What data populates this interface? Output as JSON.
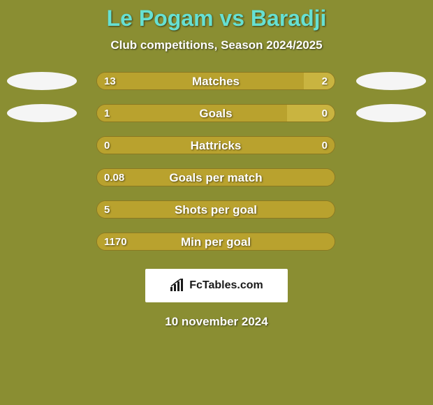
{
  "colors": {
    "background": "#8a8e32",
    "left_bar": "#b9a22e",
    "right_bar": "#c9b440",
    "left_bar_neutral": "#b9a22e",
    "avatar": "#f5f5f5",
    "title": "#66e0d2",
    "subtitle": "#ffffff",
    "row_text": "#ffffff",
    "badge_bg": "#ffffff",
    "badge_text": "#1a1a1a",
    "date_text": "#ffffff"
  },
  "layout": {
    "bar_track_width": 342,
    "bar_track_height": 26,
    "bar_radius": 13
  },
  "header": {
    "title": "Le Pogam vs Baradji",
    "subtitle": "Club competitions, Season 2024/2025"
  },
  "rows": [
    {
      "label": "Matches",
      "left": "13",
      "right": "2",
      "left_pct": 87,
      "right_pct": 13,
      "show_avatars": true
    },
    {
      "label": "Goals",
      "left": "1",
      "right": "0",
      "left_pct": 80,
      "right_pct": 20,
      "show_avatars": true
    },
    {
      "label": "Hattricks",
      "left": "0",
      "right": "0",
      "left_pct": 100,
      "right_pct": 0,
      "show_avatars": false
    },
    {
      "label": "Goals per match",
      "left": "0.08",
      "right": "",
      "left_pct": 100,
      "right_pct": 0,
      "show_avatars": false
    },
    {
      "label": "Shots per goal",
      "left": "5",
      "right": "",
      "left_pct": 100,
      "right_pct": 0,
      "show_avatars": false
    },
    {
      "label": "Min per goal",
      "left": "1170",
      "right": "",
      "left_pct": 100,
      "right_pct": 0,
      "show_avatars": false
    }
  ],
  "footer": {
    "brand": "FcTables.com",
    "date": "10 november 2024"
  }
}
